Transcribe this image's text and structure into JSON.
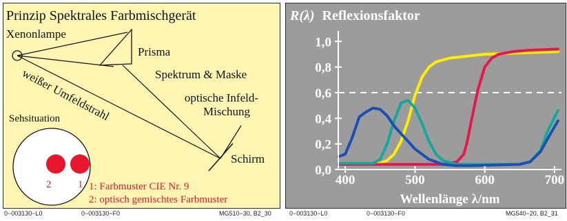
{
  "left": {
    "title": "Prinzip Spektrales Farbmischgerät",
    "labels": {
      "lamp": "Xenonlampe",
      "prism": "Prisma",
      "spectrum": "Spektrum & Maske",
      "mix1": "optische Infeld-",
      "mix2": "Mischung",
      "beam": "weißer Umfeldstrahl",
      "situation": "Sehsituation",
      "screen": "Schirm",
      "dot2": "2",
      "dot1": "1",
      "legend1": "1: Farbmuster CIE Nr. 9",
      "legend2": "2: optisch gemischtes Farbmuster"
    },
    "colors": {
      "background": "#fff5b3",
      "dots": "#e8162c",
      "legend": "#e8162c"
    }
  },
  "right": {
    "colors": {
      "background": "#9c9c9c",
      "yellow": "#ffee00",
      "red": "#e8164e",
      "cyan": "#14a89a",
      "blue": "#1a4fb4"
    }
  },
  "footer": {
    "left_a": "0−003130−L0",
    "left_b": "0−003130−F0",
    "left_c": "MG510−30, B2_30",
    "right_a": "0−003130−L0",
    "right_b": "0−003130−F0",
    "right_c": "MG540−20, B2_31"
  },
  "chart_data": {
    "type": "line",
    "title_symbol": "R(λ)",
    "title_text": "Reflexionsfaktor",
    "xlabel": "Wellenlänge λ/nm",
    "ylabel": "",
    "xlim": [
      390,
      710
    ],
    "ylim": [
      0,
      1.05
    ],
    "xticks": [
      400,
      500,
      600,
      700
    ],
    "yticks": [
      0.0,
      0.2,
      0.4,
      0.6,
      0.8,
      1.0
    ],
    "ytick_labels": [
      "0,0",
      "0,2",
      "0,4",
      "0,6",
      "0,8",
      "1,0"
    ],
    "reference_line": 0.6,
    "legend": "none",
    "series": [
      {
        "color": "#ffee00",
        "x": [
          390,
          450,
          460,
          470,
          480,
          490,
          500,
          510,
          520,
          530,
          550,
          600,
          650,
          705
        ],
        "y": [
          0.05,
          0.05,
          0.07,
          0.12,
          0.22,
          0.38,
          0.58,
          0.72,
          0.8,
          0.84,
          0.87,
          0.9,
          0.91,
          0.92
        ]
      },
      {
        "color": "#e8164e",
        "x": [
          390,
          540,
          560,
          570,
          575,
          580,
          590,
          600,
          610,
          620,
          640,
          660,
          705
        ],
        "y": [
          0.04,
          0.04,
          0.06,
          0.12,
          0.22,
          0.36,
          0.62,
          0.8,
          0.87,
          0.9,
          0.92,
          0.93,
          0.94
        ]
      },
      {
        "color": "#14a89a",
        "x": [
          390,
          440,
          450,
          460,
          470,
          480,
          490,
          500,
          510,
          520,
          530,
          540,
          560,
          650,
          665,
          680,
          690,
          705
        ],
        "y": [
          0.05,
          0.05,
          0.08,
          0.2,
          0.38,
          0.52,
          0.54,
          0.48,
          0.36,
          0.22,
          0.12,
          0.07,
          0.04,
          0.04,
          0.06,
          0.15,
          0.3,
          0.46
        ]
      },
      {
        "color": "#1a4fb4",
        "x": [
          390,
          400,
          410,
          420,
          430,
          440,
          450,
          460,
          470,
          480,
          500,
          520,
          540,
          560,
          580,
          650,
          665,
          680,
          690,
          705
        ],
        "y": [
          0.1,
          0.12,
          0.25,
          0.41,
          0.45,
          0.48,
          0.47,
          0.42,
          0.34,
          0.28,
          0.16,
          0.08,
          0.04,
          0.03,
          0.03,
          0.04,
          0.06,
          0.14,
          0.24,
          0.38
        ]
      }
    ]
  }
}
